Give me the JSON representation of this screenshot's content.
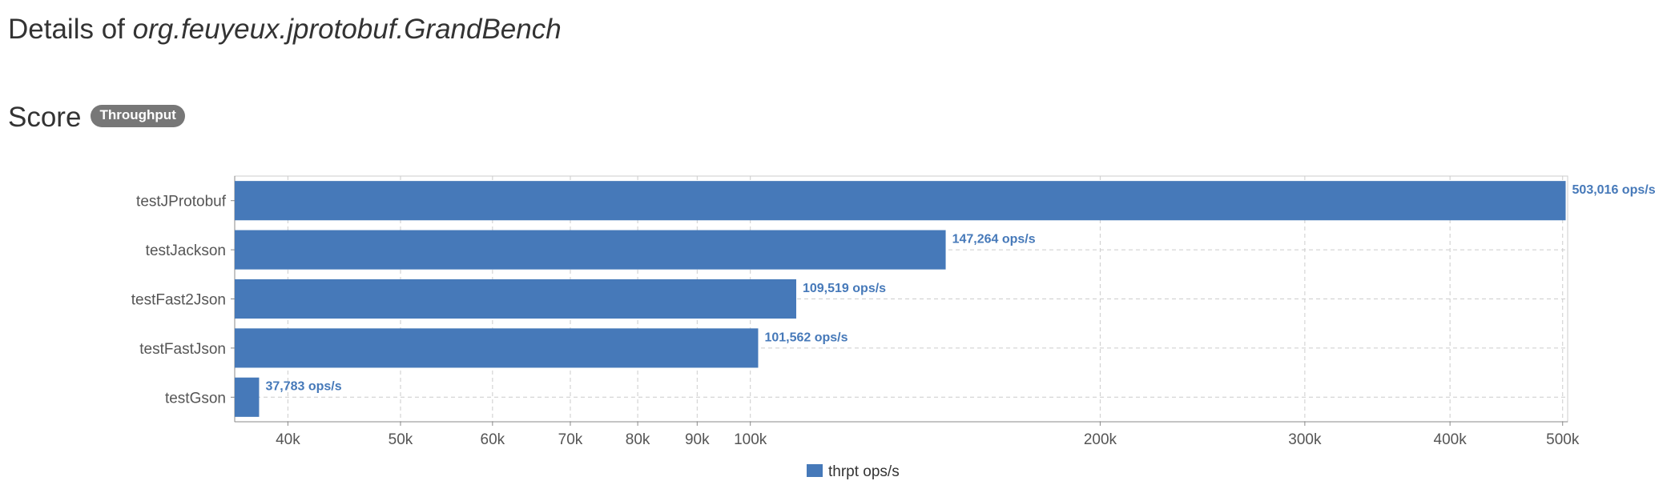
{
  "page": {
    "title_prefix": "Details of",
    "title_class": "org.feuyeux.jprotobuf.GrandBench",
    "score_heading": "Score",
    "score_badge": "Throughput"
  },
  "chart_data": {
    "type": "bar",
    "orientation": "horizontal",
    "title": "",
    "xlabel": "",
    "ylabel": "",
    "x_scale": "log",
    "xlim": [
      36000,
      505000
    ],
    "grid": true,
    "legend_position": "bottom-center",
    "bar_color": "#4679b9",
    "categories": [
      "testJProtobuf",
      "testJackson",
      "testFast2Json",
      "testFastJson",
      "testGson"
    ],
    "series": [
      {
        "name": "thrpt ops/s",
        "values": [
          503016,
          147264,
          109519,
          101562,
          37783
        ],
        "labels": [
          "503,016 ops/s",
          "147,264 ops/s",
          "109,519 ops/s",
          "101,562 ops/s",
          "37,783 ops/s"
        ]
      }
    ],
    "x_ticks": [
      {
        "value": 40000,
        "label": "40k"
      },
      {
        "value": 50000,
        "label": "50k"
      },
      {
        "value": 60000,
        "label": "60k"
      },
      {
        "value": 70000,
        "label": "70k"
      },
      {
        "value": 80000,
        "label": "80k"
      },
      {
        "value": 90000,
        "label": "90k"
      },
      {
        "value": 100000,
        "label": "100k"
      },
      {
        "value": 200000,
        "label": "200k"
      },
      {
        "value": 300000,
        "label": "300k"
      },
      {
        "value": 400000,
        "label": "400k"
      },
      {
        "value": 500000,
        "label": "500k"
      }
    ]
  }
}
